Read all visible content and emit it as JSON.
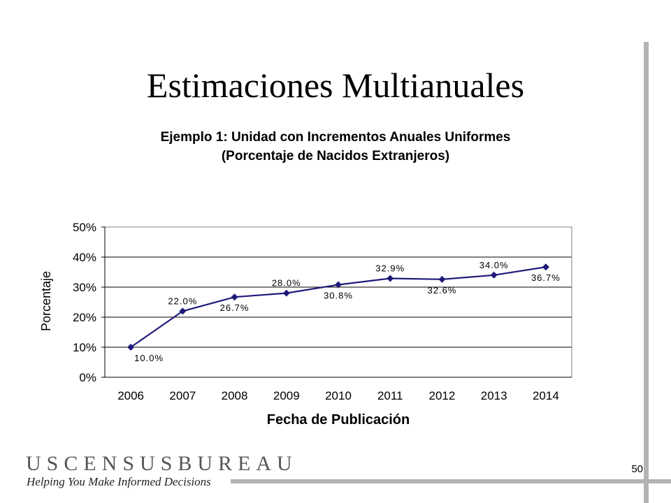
{
  "slide": {
    "title": "Estimaciones Multianuales",
    "page_number": "50"
  },
  "footer": {
    "logo_text": "USCENSUSBUREAU",
    "tagline": "Helping You Make Informed Decisions"
  },
  "chart_data": {
    "type": "line",
    "title_line1": "Ejemplo 1:  Unidad con Incrementos Anuales Uniformes",
    "title_line2": "(Porcentaje de Nacidos Extranjeros)",
    "xlabel": "Fecha de Publicación",
    "ylabel": "Porcentaje",
    "categories": [
      "2006",
      "2007",
      "2008",
      "2009",
      "2010",
      "2011",
      "2012",
      "2013",
      "2014"
    ],
    "values": [
      10.0,
      22.0,
      26.7,
      28.0,
      30.8,
      32.9,
      32.6,
      34.0,
      36.7
    ],
    "data_labels": [
      "10.0%",
      "22.0%",
      "26.7%",
      "28.0%",
      "30.8%",
      "32.9%",
      "32.6%",
      "34.0%",
      "36.7%"
    ],
    "label_positions": [
      "below",
      "above",
      "below",
      "above",
      "below",
      "above",
      "below",
      "above",
      "below"
    ],
    "y_ticks": [
      "0%",
      "10%",
      "20%",
      "30%",
      "40%",
      "50%"
    ],
    "ylim": [
      0,
      50
    ],
    "grid": true,
    "line_color": "#1f1a7a"
  }
}
